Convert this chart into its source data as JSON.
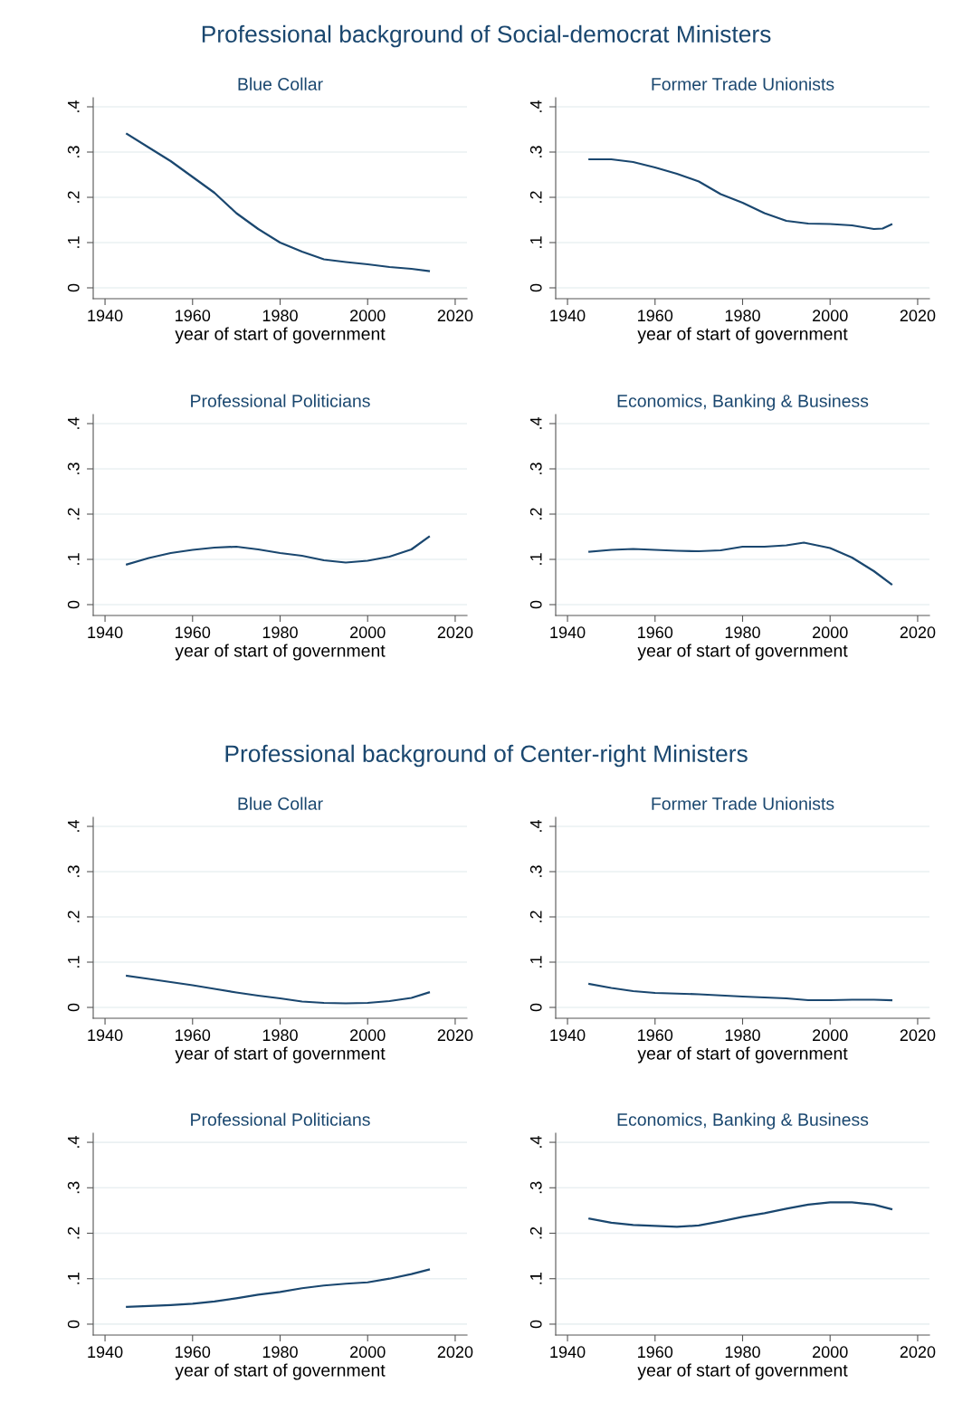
{
  "chart_data": [
    {
      "type": "line",
      "title": "Blue Collar",
      "annotations": [
        "Professional background of Social-democrat Ministers"
      ],
      "xlabel": "year of start of government",
      "x": [
        1945,
        1950,
        1955,
        1960,
        1965,
        1970,
        1975,
        1980,
        1985,
        1990,
        1995,
        2000,
        2005,
        2010,
        2014
      ],
      "series": [
        {
          "color": "#1a476f",
          "values": [
            0.34,
            0.31,
            0.28,
            0.245,
            0.21,
            0.165,
            0.13,
            0.1,
            0.08,
            0.063,
            0.057,
            0.052,
            0.046,
            0.042,
            0.037
          ]
        }
      ],
      "xlim": [
        1937.3,
        2022.7
      ],
      "ylim": [
        -0.024,
        0.42
      ],
      "xticks": [
        1940,
        1960,
        1980,
        2000,
        2020
      ],
      "yticks": [
        0,
        {
          "value": 0.1,
          "label": ".1"
        },
        {
          "value": 0.2,
          "label": ".2"
        },
        {
          "value": 0.3,
          "label": ".3"
        },
        {
          "value": 0.4,
          "label": ".4"
        }
      ],
      "grid": "y",
      "marker": "none",
      "line_style": "solid"
    },
    {
      "type": "line",
      "title": "Former Trade Unionists",
      "xlabel": "year of start of government",
      "x": [
        1945,
        1950,
        1955,
        1960,
        1965,
        1970,
        1975,
        1980,
        1985,
        1990,
        1995,
        2000,
        2005,
        2010,
        2012,
        2014
      ],
      "series": [
        {
          "color": "#1a476f",
          "values": [
            0.284,
            0.284,
            0.278,
            0.266,
            0.252,
            0.235,
            0.207,
            0.188,
            0.165,
            0.148,
            0.142,
            0.141,
            0.138,
            0.13,
            0.131,
            0.14
          ]
        }
      ],
      "xlim": [
        1937.3,
        2022.7
      ],
      "ylim": [
        -0.024,
        0.42
      ],
      "xticks": [
        1940,
        1960,
        1980,
        2000,
        2020
      ],
      "yticks": [
        0,
        {
          "value": 0.1,
          "label": ".1"
        },
        {
          "value": 0.2,
          "label": ".2"
        },
        {
          "value": 0.3,
          "label": ".3"
        },
        {
          "value": 0.4,
          "label": ".4"
        }
      ],
      "grid": "y",
      "marker": "none",
      "line_style": "solid"
    },
    {
      "type": "line",
      "title": "Professional Politicians",
      "xlabel": "year of start of government",
      "x": [
        1945,
        1950,
        1955,
        1960,
        1965,
        1970,
        1975,
        1980,
        1985,
        1990,
        1995,
        2000,
        2005,
        2010,
        2014
      ],
      "series": [
        {
          "color": "#1a476f",
          "values": [
            0.089,
            0.103,
            0.114,
            0.121,
            0.126,
            0.128,
            0.122,
            0.114,
            0.108,
            0.098,
            0.093,
            0.097,
            0.106,
            0.122,
            0.15
          ]
        }
      ],
      "xlim": [
        1937.3,
        2022.7
      ],
      "ylim": [
        -0.024,
        0.42
      ],
      "xticks": [
        1940,
        1960,
        1980,
        2000,
        2020
      ],
      "yticks": [
        0,
        {
          "value": 0.1,
          "label": ".1"
        },
        {
          "value": 0.2,
          "label": ".2"
        },
        {
          "value": 0.3,
          "label": ".3"
        },
        {
          "value": 0.4,
          "label": ".4"
        }
      ],
      "grid": "y",
      "marker": "none",
      "line_style": "solid"
    },
    {
      "type": "line",
      "title": "Economics, Banking & Business",
      "xlabel": "year of start of government",
      "x": [
        1945,
        1950,
        1955,
        1960,
        1965,
        1970,
        1975,
        1980,
        1985,
        1990,
        1994,
        2000,
        2005,
        2010,
        2014
      ],
      "series": [
        {
          "color": "#1a476f",
          "values": [
            0.117,
            0.121,
            0.123,
            0.121,
            0.119,
            0.118,
            0.12,
            0.128,
            0.128,
            0.131,
            0.137,
            0.125,
            0.104,
            0.074,
            0.045
          ]
        }
      ],
      "xlim": [
        1937.3,
        2022.7
      ],
      "ylim": [
        -0.024,
        0.42
      ],
      "xticks": [
        1940,
        1960,
        1980,
        2000,
        2020
      ],
      "yticks": [
        0,
        {
          "value": 0.1,
          "label": ".1"
        },
        {
          "value": 0.2,
          "label": ".2"
        },
        {
          "value": 0.3,
          "label": ".3"
        },
        {
          "value": 0.4,
          "label": ".4"
        }
      ],
      "grid": "y",
      "marker": "none",
      "line_style": "solid"
    },
    {
      "type": "line",
      "title": "Blue Collar",
      "annotations": [
        "Professional background of Center-right Ministers"
      ],
      "xlabel": "year of start of government",
      "x": [
        1945,
        1950,
        1955,
        1960,
        1965,
        1970,
        1975,
        1980,
        1985,
        1990,
        1995,
        2000,
        2005,
        2010,
        2014
      ],
      "series": [
        {
          "color": "#1a476f",
          "values": [
            0.07,
            0.063,
            0.056,
            0.049,
            0.041,
            0.033,
            0.026,
            0.02,
            0.013,
            0.01,
            0.009,
            0.01,
            0.014,
            0.021,
            0.033
          ]
        }
      ],
      "xlim": [
        1937.3,
        2022.7
      ],
      "ylim": [
        -0.024,
        0.42
      ],
      "xticks": [
        1940,
        1960,
        1980,
        2000,
        2020
      ],
      "yticks": [
        0,
        {
          "value": 0.1,
          "label": ".1"
        },
        {
          "value": 0.2,
          "label": ".2"
        },
        {
          "value": 0.3,
          "label": ".3"
        },
        {
          "value": 0.4,
          "label": ".4"
        }
      ],
      "grid": "y",
      "marker": "none",
      "line_style": "solid"
    },
    {
      "type": "line",
      "title": "Former Trade Unionists",
      "xlabel": "year of start of government",
      "x": [
        1945,
        1950,
        1955,
        1960,
        1970,
        1980,
        1990,
        1995,
        2000,
        2005,
        2010,
        2014
      ],
      "series": [
        {
          "color": "#1a476f",
          "values": [
            0.052,
            0.043,
            0.036,
            0.032,
            0.029,
            0.024,
            0.02,
            0.016,
            0.016,
            0.017,
            0.017,
            0.016
          ]
        }
      ],
      "xlim": [
        1937.3,
        2022.7
      ],
      "ylim": [
        -0.024,
        0.42
      ],
      "xticks": [
        1940,
        1960,
        1980,
        2000,
        2020
      ],
      "yticks": [
        0,
        {
          "value": 0.1,
          "label": ".1"
        },
        {
          "value": 0.2,
          "label": ".2"
        },
        {
          "value": 0.3,
          "label": ".3"
        },
        {
          "value": 0.4,
          "label": ".4"
        }
      ],
      "grid": "y",
      "marker": "none",
      "line_style": "solid"
    },
    {
      "type": "line",
      "title": "Professional Politicians",
      "xlabel": "year of start of government",
      "x": [
        1945,
        1950,
        1955,
        1960,
        1965,
        1970,
        1975,
        1980,
        1985,
        1990,
        1995,
        2000,
        2005,
        2010,
        2014
      ],
      "series": [
        {
          "color": "#1a476f",
          "values": [
            0.038,
            0.04,
            0.042,
            0.045,
            0.05,
            0.057,
            0.065,
            0.071,
            0.079,
            0.085,
            0.089,
            0.092,
            0.1,
            0.11,
            0.12
          ]
        }
      ],
      "xlim": [
        1937.3,
        2022.7
      ],
      "ylim": [
        -0.024,
        0.42
      ],
      "xticks": [
        1940,
        1960,
        1980,
        2000,
        2020
      ],
      "yticks": [
        0,
        {
          "value": 0.1,
          "label": ".1"
        },
        {
          "value": 0.2,
          "label": ".2"
        },
        {
          "value": 0.3,
          "label": ".3"
        },
        {
          "value": 0.4,
          "label": ".4"
        }
      ],
      "grid": "y",
      "marker": "none",
      "line_style": "solid"
    },
    {
      "type": "line",
      "title": "Economics, Banking & Business",
      "xlabel": "year of start of government",
      "x": [
        1945,
        1950,
        1955,
        1960,
        1965,
        1970,
        1975,
        1980,
        1985,
        1990,
        1995,
        2000,
        2005,
        2010,
        2014
      ],
      "series": [
        {
          "color": "#1a476f",
          "values": [
            0.232,
            0.223,
            0.218,
            0.216,
            0.214,
            0.217,
            0.226,
            0.236,
            0.244,
            0.254,
            0.263,
            0.268,
            0.268,
            0.263,
            0.253
          ]
        }
      ],
      "xlim": [
        1937.3,
        2022.7
      ],
      "ylim": [
        -0.024,
        0.42
      ],
      "xticks": [
        1940,
        1960,
        1980,
        2000,
        2020
      ],
      "yticks": [
        0,
        {
          "value": 0.1,
          "label": ".1"
        },
        {
          "value": 0.2,
          "label": ".2"
        },
        {
          "value": 0.3,
          "label": ".3"
        },
        {
          "value": 0.4,
          "label": ".4"
        }
      ],
      "grid": "y",
      "marker": "none",
      "line_style": "solid"
    }
  ]
}
